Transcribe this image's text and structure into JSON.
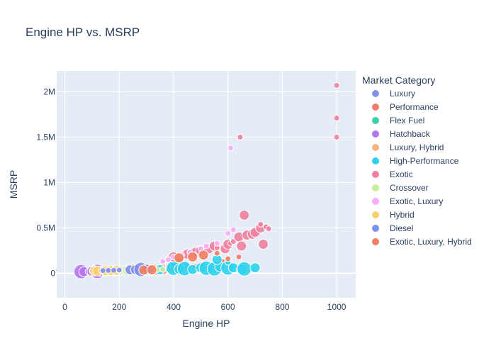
{
  "chart_data": {
    "type": "scatter",
    "title": "Engine HP vs. MSRP",
    "xlabel": "Engine HP",
    "ylabel": "MSRP",
    "legend_title": "Market Category",
    "legend_position": "right",
    "grid": true,
    "xlim": [
      -30,
      1070
    ],
    "ylim": [
      -270000,
      2230000
    ],
    "x_ticks": [
      0,
      200,
      400,
      600,
      800,
      1000
    ],
    "x_tick_labels": [
      "0",
      "200",
      "400",
      "600",
      "800",
      "1000"
    ],
    "y_ticks": [
      0,
      500000,
      1000000,
      1500000,
      2000000
    ],
    "y_tick_labels": [
      "0",
      "0.5M",
      "1M",
      "1.5M",
      "2M"
    ],
    "series": [
      {
        "name": "Luxury",
        "color": "#8591e8",
        "points": [
          [
            170,
            32000,
            1
          ],
          [
            200,
            36000,
            1
          ],
          [
            230,
            40000,
            1
          ],
          [
            250,
            46000,
            1
          ],
          [
            280,
            50000,
            1
          ],
          [
            300,
            55000,
            1
          ],
          [
            330,
            60000,
            1
          ],
          [
            350,
            65000,
            1
          ],
          [
            380,
            72000,
            1
          ],
          [
            400,
            80000,
            1
          ],
          [
            420,
            90000,
            1
          ],
          [
            450,
            100000,
            1
          ],
          [
            260,
            44000,
            1
          ],
          [
            310,
            58000,
            1
          ]
        ]
      },
      {
        "name": "Performance",
        "color": "#ef7f6c",
        "points": [
          [
            300,
            28000,
            2
          ],
          [
            320,
            33000,
            2
          ],
          [
            340,
            35000,
            2
          ],
          [
            360,
            38000,
            2
          ],
          [
            390,
            42000,
            1
          ],
          [
            420,
            48000,
            1
          ],
          [
            450,
            60000,
            1
          ],
          [
            480,
            75000,
            1
          ],
          [
            500,
            95000,
            1
          ],
          [
            550,
            110000,
            1
          ],
          [
            580,
            130000,
            1
          ]
        ]
      },
      {
        "name": "Flex Fuel",
        "color": "#3dcfa8",
        "points": [
          [
            280,
            30000,
            2
          ],
          [
            300,
            33000,
            2
          ],
          [
            320,
            36000,
            1
          ],
          [
            355,
            38000,
            1
          ],
          [
            380,
            40000,
            1
          ],
          [
            360,
            42000,
            1
          ]
        ]
      },
      {
        "name": "Hatchback",
        "color": "#b574ef",
        "points": [
          [
            60,
            18000,
            3
          ],
          [
            70,
            17000,
            2
          ],
          [
            85,
            19000,
            1
          ],
          [
            100,
            21000,
            2
          ],
          [
            120,
            20000,
            3
          ],
          [
            130,
            22000,
            2
          ],
          [
            150,
            24000,
            1
          ],
          [
            170,
            25000,
            1
          ],
          [
            190,
            27000,
            2
          ],
          [
            200,
            26000,
            1
          ]
        ]
      },
      {
        "name": "Luxury, Hybrid",
        "color": "#f6b383",
        "points": [
          [
            250,
            50000,
            2
          ],
          [
            280,
            55000,
            1
          ],
          [
            300,
            60000,
            1
          ],
          [
            330,
            70000,
            1
          ],
          [
            360,
            80000,
            1
          ]
        ]
      },
      {
        "name": "High-Performance",
        "color": "#2fd2ec",
        "points": [
          [
            300,
            45000,
            2
          ],
          [
            350,
            40000,
            2
          ],
          [
            400,
            55000,
            3
          ],
          [
            420,
            45000,
            2
          ],
          [
            440,
            50000,
            3
          ],
          [
            470,
            42000,
            2
          ],
          [
            500,
            60000,
            2
          ],
          [
            520,
            55000,
            3
          ],
          [
            550,
            48000,
            3
          ],
          [
            570,
            70000,
            2
          ],
          [
            600,
            58000,
            3
          ],
          [
            620,
            60000,
            2
          ],
          [
            650,
            40000,
            2
          ],
          [
            660,
            48000,
            3
          ],
          [
            700,
            60000,
            2
          ],
          [
            560,
            150000,
            2
          ],
          [
            600,
            120000,
            1
          ]
        ]
      },
      {
        "name": "Exotic",
        "color": "#f0819e",
        "points": [
          [
            400,
            180000,
            2
          ],
          [
            420,
            170000,
            2
          ],
          [
            450,
            210000,
            2
          ],
          [
            480,
            230000,
            2
          ],
          [
            500,
            250000,
            2
          ],
          [
            530,
            270000,
            2
          ],
          [
            550,
            300000,
            2
          ],
          [
            560,
            280000,
            1
          ],
          [
            590,
            270000,
            2
          ],
          [
            600,
            320000,
            2
          ],
          [
            610,
            330000,
            1
          ],
          [
            620,
            350000,
            1
          ],
          [
            640,
            400000,
            2
          ],
          [
            650,
            300000,
            2
          ],
          [
            660,
            640000,
            2
          ],
          [
            670,
            420000,
            2
          ],
          [
            690,
            430000,
            2
          ],
          [
            700,
            450000,
            2
          ],
          [
            720,
            500000,
            2
          ],
          [
            720,
            540000,
            1
          ],
          [
            730,
            320000,
            2
          ],
          [
            740,
            510000,
            1
          ],
          [
            750,
            490000,
            1
          ],
          [
            645,
            1500000,
            1
          ],
          [
            1000,
            2070000,
            1
          ],
          [
            1000,
            1710000,
            1
          ],
          [
            1000,
            1500000,
            1
          ]
        ]
      },
      {
        "name": "Crossover",
        "color": "#c9ec9a",
        "points": [
          [
            120,
            23000,
            1
          ],
          [
            150,
            26000,
            2
          ],
          [
            180,
            28000,
            2
          ],
          [
            200,
            30000,
            2
          ],
          [
            230,
            32000,
            2
          ],
          [
            250,
            35000,
            1
          ],
          [
            270,
            36000,
            1
          ],
          [
            300,
            38000,
            1
          ],
          [
            340,
            40000,
            1
          ],
          [
            360,
            42000,
            1
          ]
        ]
      },
      {
        "name": "Exotic, Luxury",
        "color": "#f8adf8",
        "points": [
          [
            360,
            130000,
            1
          ],
          [
            380,
            150000,
            1
          ],
          [
            400,
            180000,
            1
          ],
          [
            430,
            200000,
            1
          ],
          [
            460,
            230000,
            1
          ],
          [
            500,
            270000,
            1
          ],
          [
            520,
            300000,
            1
          ],
          [
            560,
            330000,
            1
          ],
          [
            600,
            440000,
            1
          ],
          [
            620,
            480000,
            1
          ],
          [
            610,
            1380000,
            1
          ]
        ]
      },
      {
        "name": "Hybrid",
        "color": "#f8d06c",
        "points": [
          [
            100,
            25000,
            1
          ],
          [
            110,
            26000,
            2
          ],
          [
            120,
            24000,
            2
          ],
          [
            134,
            27000,
            1
          ],
          [
            150,
            28000,
            2
          ],
          [
            170,
            30000,
            2
          ],
          [
            190,
            32000,
            2
          ],
          [
            200,
            29000,
            1
          ],
          [
            230,
            33000,
            1
          ],
          [
            250,
            36000,
            1
          ]
        ]
      },
      {
        "name": "Diesel",
        "color": "#7f8ff0",
        "points": [
          [
            140,
            30000,
            1
          ],
          [
            160,
            32000,
            1
          ],
          [
            180,
            33000,
            1
          ],
          [
            200,
            35000,
            1
          ],
          [
            240,
            38000,
            2
          ],
          [
            260,
            40000,
            2
          ],
          [
            280,
            42000,
            3
          ],
          [
            300,
            45000,
            2
          ]
        ]
      },
      {
        "name": "Exotic, Luxury, Hybrid",
        "color": "#ef7e62",
        "points": [
          [
            290,
            35000,
            2
          ],
          [
            320,
            38000,
            2
          ],
          [
            420,
            170000,
            2
          ],
          [
            470,
            180000,
            2
          ],
          [
            510,
            200000,
            2
          ],
          [
            560,
            220000,
            1
          ],
          [
            600,
            160000,
            1
          ],
          [
            640,
            180000,
            1
          ]
        ]
      }
    ]
  }
}
